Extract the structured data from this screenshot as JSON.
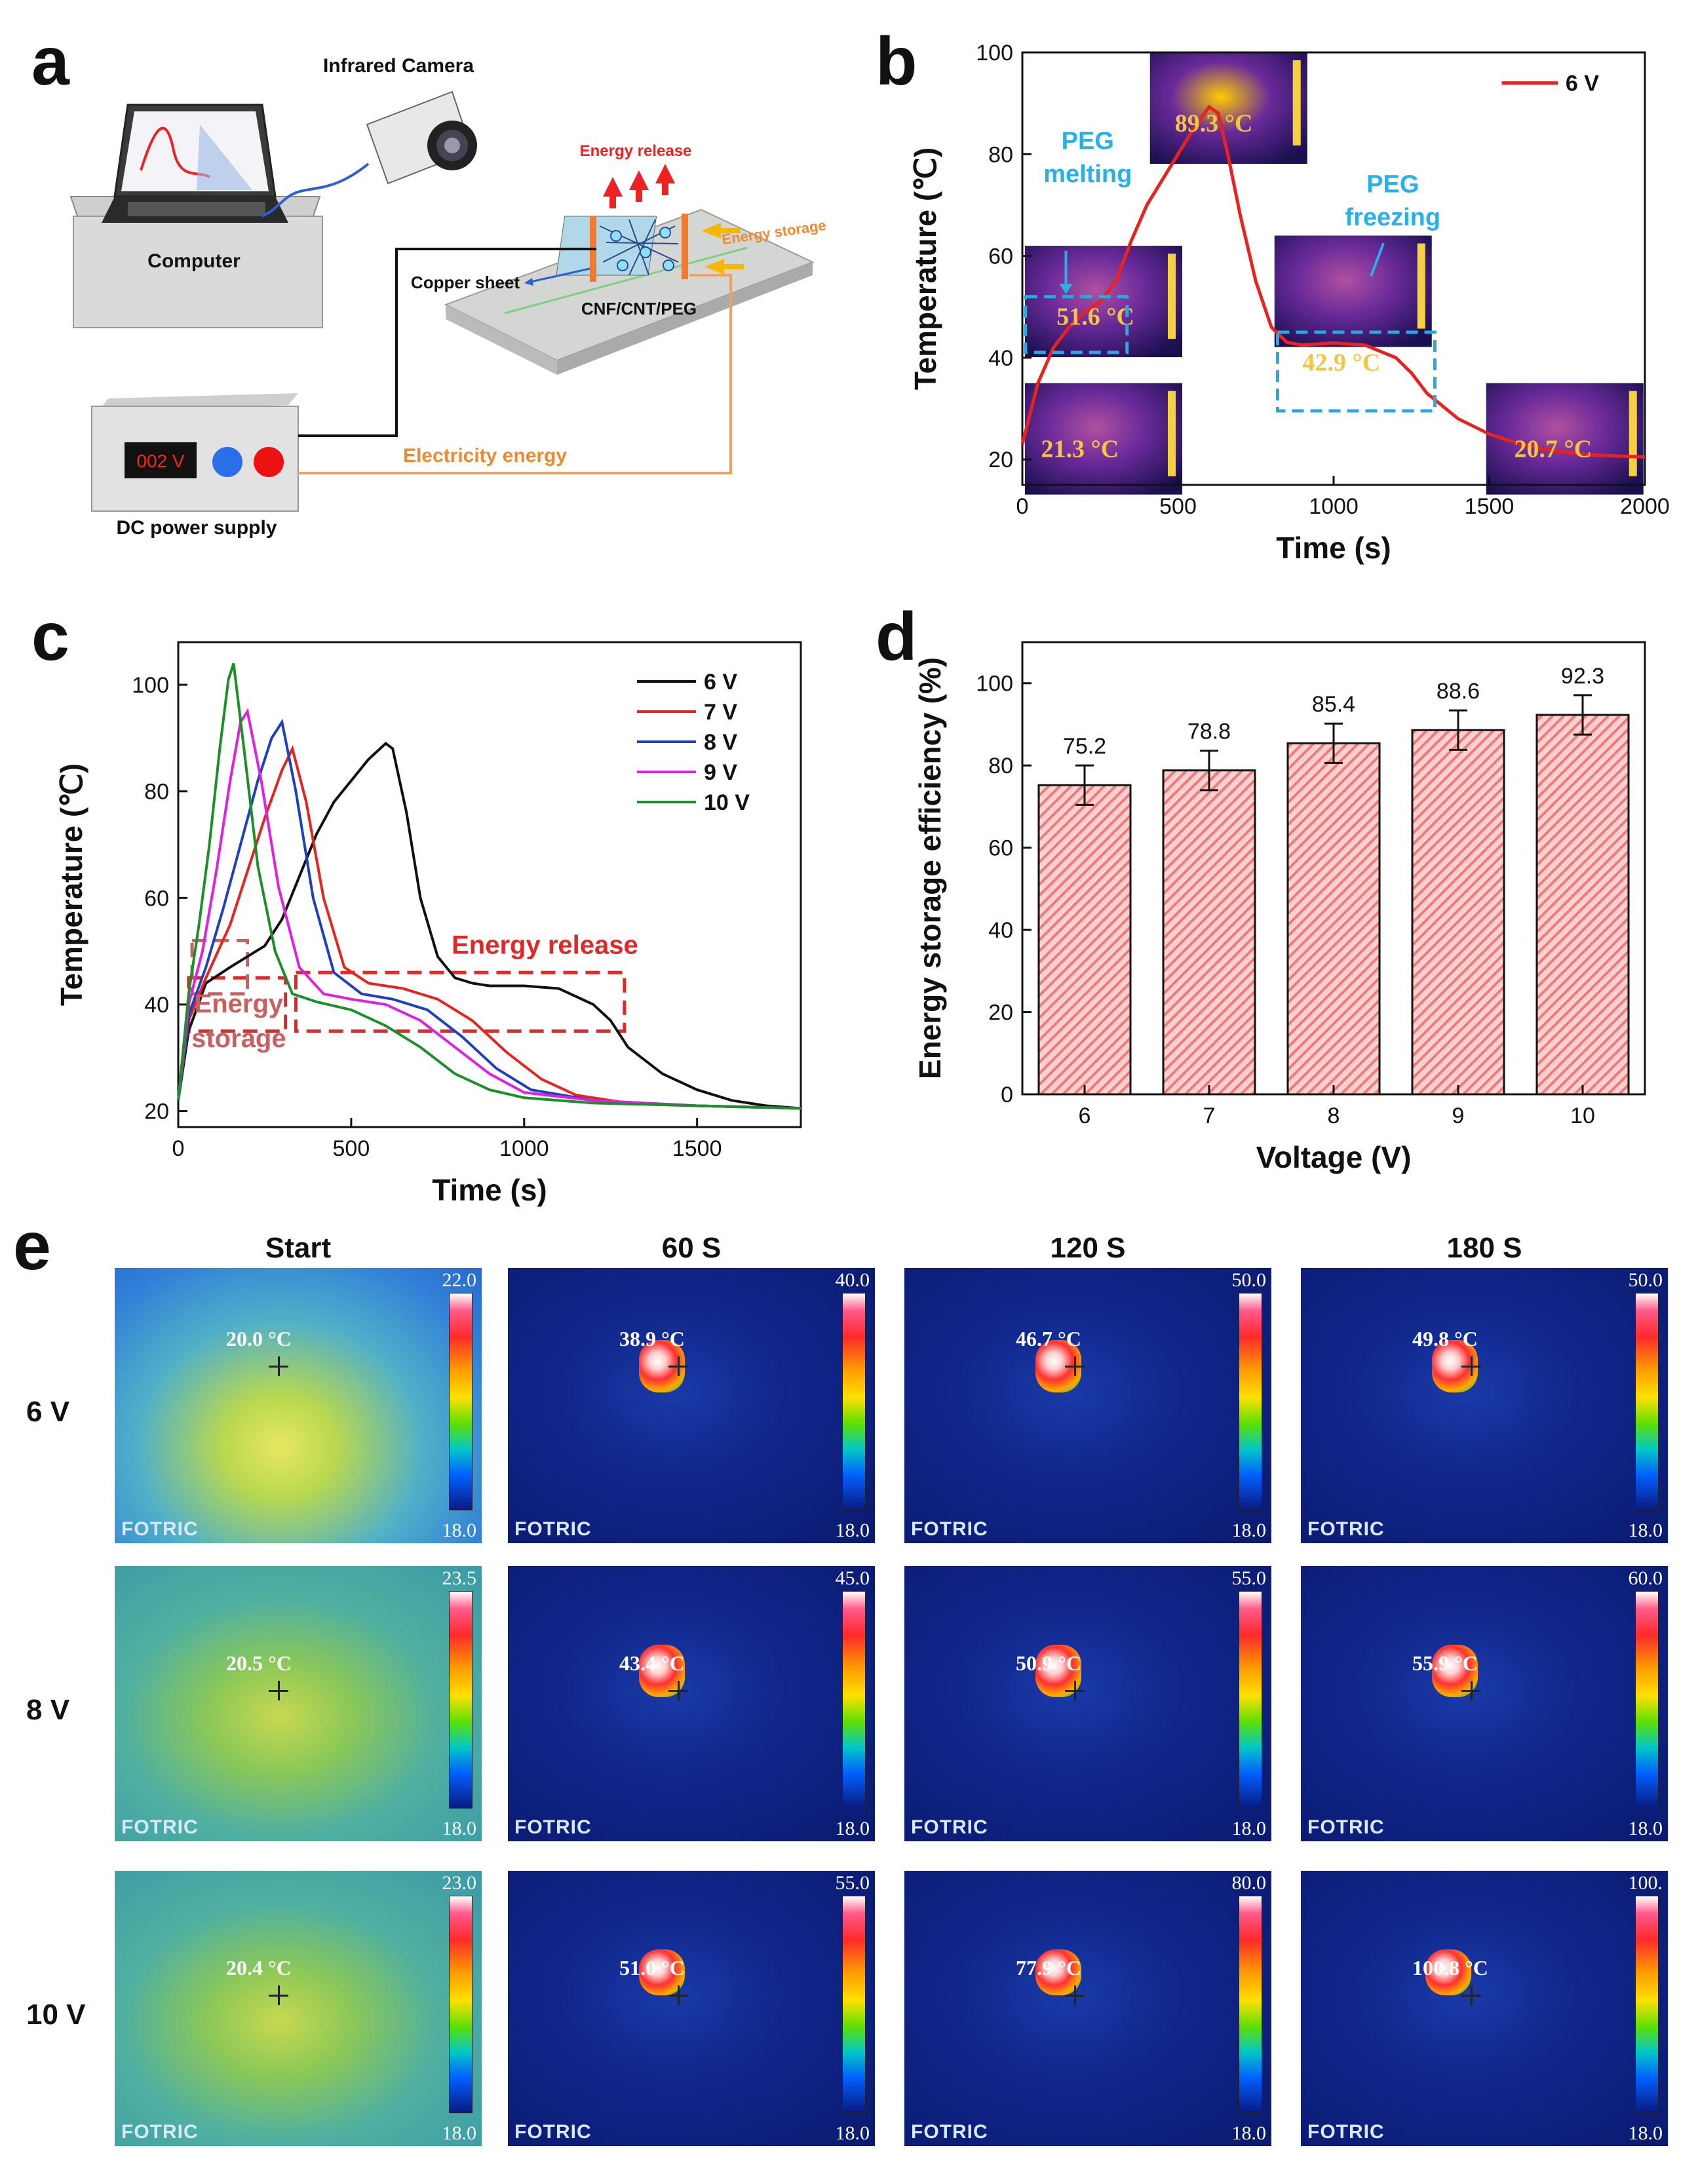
{
  "panel_letters": {
    "a": "a",
    "b": "b",
    "c": "c",
    "d": "d",
    "e": "e"
  },
  "schematic": {
    "infrared_camera": "Infrared Camera",
    "computer": "Computer",
    "energy_release": "Energy release",
    "energy_storage": "Energy storage",
    "copper_sheet": "Copper sheet",
    "sample": "CNF/CNT/PEG",
    "power_display": "002 V",
    "dc_power_supply": "DC power supply",
    "electricity_energy": "Electricity energy"
  },
  "chart_b": {
    "xlabel": "Time (s)",
    "ylabel": "Temperature (℃)",
    "legend": "6 V",
    "annotations": {
      "peg_melting_1": "PEG",
      "peg_melting_2": "melting",
      "peg_freezing_1": "PEG",
      "peg_freezing_2": "freezing",
      "t1": "21.3 °C",
      "t2": "51.6 °C",
      "t3": "89.3 °C",
      "t4": "42.9 °C",
      "t5": "20.7 °C"
    },
    "xticks": [
      "0",
      "500",
      "1000",
      "1500",
      "2000"
    ],
    "yticks": [
      "20",
      "40",
      "60",
      "80",
      "100"
    ]
  },
  "chart_c": {
    "xlabel": "Time (s)",
    "ylabel": "Temperature (℃)",
    "xticks": [
      "0",
      "500",
      "1000",
      "1500"
    ],
    "yticks": [
      "20",
      "40",
      "60",
      "80",
      "100"
    ],
    "energy_release": "Energy release",
    "energy_storage_1": "Energy",
    "energy_storage_2": "storage",
    "legend": [
      "6 V",
      "7 V",
      "8 V",
      "9 V",
      "10 V"
    ]
  },
  "chart_d": {
    "xlabel": "Voltage (V)",
    "ylabel": "Energy storage efficiency (%)",
    "categories": [
      "6",
      "7",
      "8",
      "9",
      "10"
    ],
    "value_labels": [
      "75.2",
      "78.8",
      "85.4",
      "88.6",
      "92.3"
    ],
    "yticks": [
      "0",
      "20",
      "40",
      "60",
      "80",
      "100"
    ]
  },
  "chart_data": [
    {
      "type": "line",
      "xlabel": "Time (s)",
      "ylabel": "Temperature (℃)",
      "xlim": [
        0,
        2000
      ],
      "ylim": [
        15,
        100
      ],
      "series": [
        {
          "name": "6 V",
          "color": "#e8231f",
          "x": [
            0,
            50,
            100,
            150,
            200,
            250,
            300,
            350,
            400,
            450,
            500,
            550,
            600,
            630,
            660,
            700,
            750,
            800,
            850,
            900,
            1000,
            1100,
            1200,
            1250,
            1300,
            1400,
            1500,
            1600,
            1700,
            1800,
            1900,
            2000
          ],
          "y": [
            23,
            35,
            42,
            46,
            49,
            51,
            55,
            63,
            70,
            75,
            80,
            85,
            89.3,
            88,
            80,
            68,
            55,
            46,
            43,
            42.5,
            42.9,
            42.5,
            40,
            37,
            33,
            28,
            25,
            23,
            21.8,
            21,
            20.7,
            20.5
          ]
        }
      ]
    },
    {
      "type": "line",
      "xlabel": "Time (s)",
      "ylabel": "Temperature (℃)",
      "xlim": [
        0,
        1800
      ],
      "ylim": [
        17,
        108
      ],
      "series": [
        {
          "name": "6 V",
          "color": "#111111",
          "x": [
            0,
            30,
            80,
            150,
            200,
            250,
            300,
            350,
            400,
            450,
            500,
            550,
            600,
            620,
            660,
            700,
            750,
            800,
            850,
            900,
            950,
            1000,
            1100,
            1200,
            1250,
            1300,
            1400,
            1500,
            1600,
            1700,
            1800
          ],
          "y": [
            22,
            35,
            44,
            47,
            49,
            51,
            56,
            64,
            72,
            78,
            82,
            86,
            89,
            88,
            76,
            60,
            49,
            45,
            44,
            43.5,
            43.5,
            43.5,
            43,
            40,
            37,
            32,
            27,
            24,
            22,
            21,
            20.5
          ]
        },
        {
          "name": "7 V",
          "color": "#e8231f",
          "x": [
            0,
            30,
            80,
            150,
            200,
            250,
            300,
            330,
            370,
            420,
            480,
            550,
            650,
            750,
            850,
            950,
            1050,
            1150,
            1300,
            1500,
            1800
          ],
          "y": [
            22,
            37,
            45,
            55,
            65,
            75,
            84,
            88,
            78,
            60,
            47,
            44,
            43,
            41,
            37,
            31,
            26,
            23,
            21.5,
            21,
            20.5
          ]
        },
        {
          "name": "8 V",
          "color": "#1f3fbf",
          "x": [
            0,
            30,
            80,
            130,
            180,
            230,
            270,
            300,
            340,
            390,
            450,
            530,
            620,
            720,
            820,
            920,
            1020,
            1200,
            1500,
            1800
          ],
          "y": [
            22,
            38,
            47,
            58,
            70,
            82,
            90,
            93,
            80,
            60,
            46,
            42,
            41,
            39,
            34,
            28,
            24,
            22,
            21,
            20.5
          ]
        },
        {
          "name": "9 V",
          "color": "#e020e0",
          "x": [
            0,
            30,
            70,
            110,
            150,
            180,
            200,
            240,
            290,
            350,
            420,
            500,
            600,
            700,
            800,
            900,
            1000,
            1200,
            1500,
            1800
          ],
          "y": [
            22,
            40,
            50,
            65,
            82,
            93,
            95,
            82,
            62,
            47,
            42,
            41,
            40,
            37,
            32,
            27,
            23.5,
            22,
            21,
            20.5
          ]
        },
        {
          "name": "10 V",
          "color": "#1a8f2a",
          "x": [
            0,
            30,
            60,
            90,
            120,
            145,
            160,
            190,
            230,
            280,
            330,
            400,
            500,
            600,
            700,
            800,
            900,
            1000,
            1200,
            1500,
            1800
          ],
          "y": [
            22,
            42,
            55,
            70,
            88,
            101,
            104,
            88,
            66,
            50,
            42,
            40.5,
            39,
            36,
            32,
            27,
            24,
            22.5,
            21.5,
            21,
            20.5
          ]
        }
      ]
    },
    {
      "type": "bar",
      "xlabel": "Voltage (V)",
      "ylabel": "Energy storage efficiency (%)",
      "ylim": [
        0,
        110
      ],
      "categories": [
        "6",
        "7",
        "8",
        "9",
        "10"
      ],
      "values": [
        75.2,
        78.8,
        85.4,
        88.6,
        92.3
      ],
      "errors": [
        4.8,
        4.8,
        4.8,
        4.8,
        4.8
      ],
      "color": "#f07a7a"
    }
  ],
  "thermal": {
    "columns": [
      "Start",
      "60 S",
      "120 S",
      "180 S"
    ],
    "rows": [
      {
        "label": "6 V",
        "cells": [
          {
            "temp": "20.0 °C",
            "max": "22.0",
            "min": "18.0"
          },
          {
            "temp": "38.9 °C",
            "max": "40.0",
            "min": "18.0"
          },
          {
            "temp": "46.7 °C",
            "max": "50.0",
            "min": "18.0"
          },
          {
            "temp": "49.8 °C",
            "max": "50.0",
            "min": "18.0"
          }
        ]
      },
      {
        "label": "8 V",
        "cells": [
          {
            "temp": "20.5 °C",
            "max": "23.5",
            "min": "18.0"
          },
          {
            "temp": "43.4 °C",
            "max": "45.0",
            "min": "18.0"
          },
          {
            "temp": "50.9 °C",
            "max": "55.0",
            "min": "18.0"
          },
          {
            "temp": "55.9 °C",
            "max": "60.0",
            "min": "18.0"
          }
        ]
      },
      {
        "label": "10 V",
        "cells": [
          {
            "temp": "20.4 °C",
            "max": "23.0",
            "min": "18.0"
          },
          {
            "temp": "51.0 °C",
            "max": "55.0",
            "min": "18.0"
          },
          {
            "temp": "77.9 °C",
            "max": "80.0",
            "min": "18.0"
          },
          {
            "temp": "100.8 °C",
            "max": "100.",
            "min": "18.0"
          }
        ]
      }
    ],
    "brand": "FOTRIC"
  }
}
